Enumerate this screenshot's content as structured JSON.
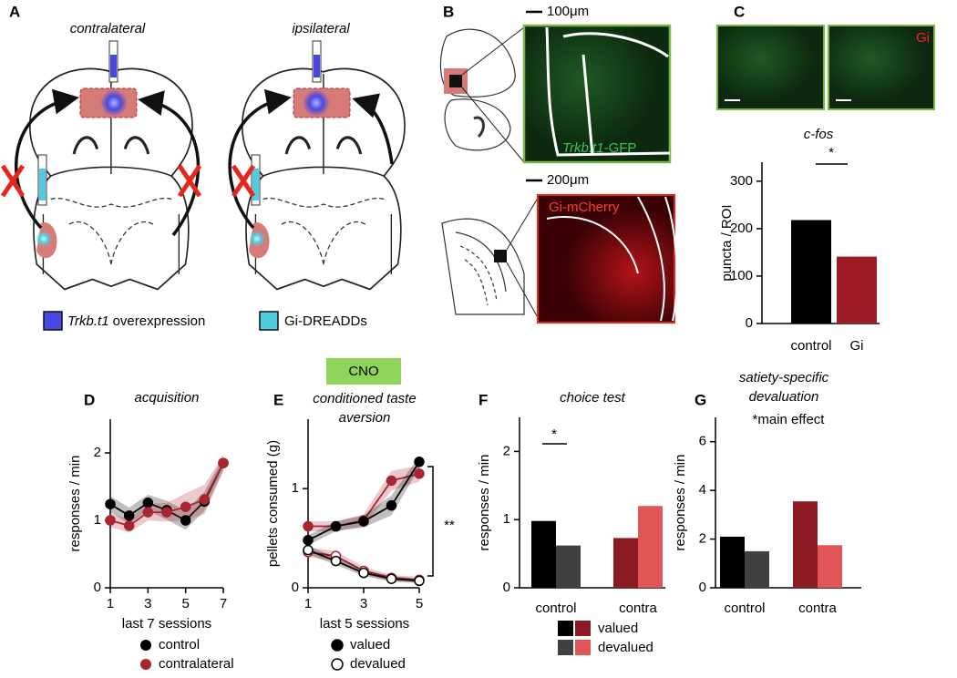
{
  "panel_labels": [
    "A",
    "B",
    "C",
    "D",
    "E",
    "F",
    "G"
  ],
  "panel_a": {
    "titles": [
      "contralateral",
      "ipsilateral"
    ],
    "legend": [
      {
        "gene": "Trkb.t1",
        "text": "overexpression",
        "color": "#4848e0"
      },
      {
        "text": "Gi-DREADDs",
        "color": "#4fcbe0"
      }
    ]
  },
  "panel_b": {
    "scale_bars": [
      "100μm",
      "200μm"
    ],
    "green_label": {
      "gene": "Trkb.t1",
      "text": "-GFP"
    },
    "red_label": "Gi-mCherry"
  },
  "panel_c_image_label": "Gi",
  "cno_label": "CNO",
  "chart_data": [
    {
      "type": "bar",
      "title": "c-fos",
      "ylabel": "puncta / ROI",
      "annotation": "*",
      "categories": [
        "control",
        "Gi"
      ],
      "values": [
        218,
        141
      ],
      "colors": [
        "#000000",
        "#9b1b26"
      ],
      "ylim": [
        0,
        340
      ],
      "yticks": [
        0,
        100,
        200,
        300
      ]
    },
    {
      "type": "line",
      "title": "acquisition",
      "xlabel": "last 7 sessions",
      "ylabel": "responses / min",
      "x": [
        1,
        2,
        3,
        4,
        5,
        6,
        7
      ],
      "xlim": [
        1,
        7
      ],
      "xticks": [
        1,
        3,
        5,
        7
      ],
      "ylim": [
        0,
        2.5
      ],
      "yticks": [
        0,
        1,
        2
      ],
      "series": [
        {
          "name": "control",
          "color": "#000000",
          "marker": "filled",
          "values": [
            1.24,
            1.07,
            1.26,
            1.15,
            1.0,
            1.28,
            1.85
          ],
          "error": [
            0.12,
            0.12,
            0.12,
            0.14,
            0.14,
            0.14,
            0.1
          ]
        },
        {
          "name": "contralateral",
          "color": "#a8262f",
          "marker": "filled",
          "values": [
            1.0,
            0.92,
            1.12,
            1.12,
            1.2,
            1.31,
            1.85
          ],
          "error": [
            0.1,
            0.1,
            0.12,
            0.14,
            0.2,
            0.22,
            0.12
          ]
        }
      ]
    },
    {
      "type": "line",
      "title_lines": [
        "conditioned taste",
        "aversion"
      ],
      "xlabel": "last 5 sessions",
      "ylabel": "pellets consumed (g)",
      "annotation": "**",
      "x": [
        1,
        2,
        3,
        4,
        5
      ],
      "xlim": [
        1,
        5
      ],
      "xticks": [
        1,
        3,
        5
      ],
      "ylim": [
        0,
        1.7
      ],
      "yticks": [
        0,
        1
      ],
      "legend": [
        {
          "label": "valued",
          "marker": "filled"
        },
        {
          "label": "devalued",
          "marker": "open"
        }
      ],
      "series": [
        {
          "color": "#a8262f",
          "marker": "filled",
          "values": [
            0.62,
            0.62,
            0.68,
            1.08,
            1.15
          ],
          "error": [
            0.05,
            0.05,
            0.06,
            0.1,
            0.08
          ]
        },
        {
          "color": "#000000",
          "marker": "filled",
          "values": [
            0.48,
            0.62,
            0.67,
            0.83,
            1.27
          ],
          "error": [
            0.05,
            0.05,
            0.06,
            0.1,
            0.06
          ]
        },
        {
          "color": "#a8262f",
          "marker": "open",
          "values": [
            0.36,
            0.32,
            0.17,
            0.1,
            0.08
          ],
          "error": [
            0.05,
            0.05,
            0.04,
            0.03,
            0.03
          ]
        },
        {
          "color": "#000000",
          "marker": "open",
          "values": [
            0.38,
            0.27,
            0.15,
            0.09,
            0.07
          ],
          "error": [
            0.04,
            0.04,
            0.03,
            0.03,
            0.02
          ]
        }
      ]
    },
    {
      "type": "grouped_bar",
      "title": "choice test",
      "ylabel": "responses / min",
      "annotation": "*",
      "categories": [
        "control",
        "contra"
      ],
      "ylim": [
        0,
        2.5
      ],
      "yticks": [
        0,
        1,
        2
      ],
      "series": [
        {
          "name": "valued",
          "colors": [
            "#000000",
            "#8b1a22"
          ],
          "values": [
            0.98,
            0.73
          ]
        },
        {
          "name": "devalued",
          "colors": [
            "#404040",
            "#e05555"
          ],
          "values": [
            0.62,
            1.2
          ]
        }
      ]
    },
    {
      "type": "grouped_bar",
      "title_lines": [
        "satiety-specific",
        "devaluation"
      ],
      "ylabel": "responses / min",
      "annotation": "*main effect",
      "categories": [
        "control",
        "contra"
      ],
      "ylim": [
        0,
        7
      ],
      "yticks": [
        0,
        2,
        4,
        6
      ],
      "series": [
        {
          "colors": [
            "#000000",
            "#8b1a22"
          ],
          "values": [
            2.1,
            3.55
          ]
        },
        {
          "colors": [
            "#404040",
            "#e05555"
          ],
          "values": [
            1.5,
            1.75
          ]
        }
      ]
    }
  ]
}
